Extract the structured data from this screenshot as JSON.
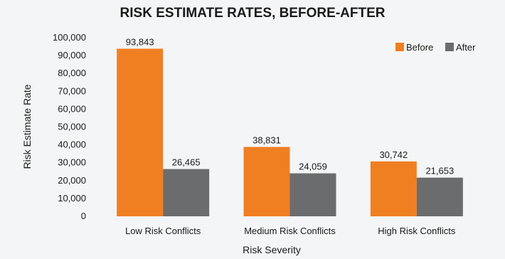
{
  "chart_data": {
    "type": "bar",
    "title": "RISK ESTIMATE RATES, BEFORE-AFTER",
    "xlabel": "Risk Severity",
    "ylabel": "Risk Estimate Rate",
    "categories": [
      "Low Risk Conflicts",
      "Medium Risk Conflicts",
      "High Risk Conflicts"
    ],
    "series": [
      {
        "name": "Before",
        "color": "#f07f22",
        "values": [
          93843,
          38831,
          30742
        ],
        "labels": [
          "93,843",
          "38,831",
          "30,742"
        ]
      },
      {
        "name": "After",
        "color": "#6b6c6e",
        "values": [
          26465,
          24059,
          21653
        ],
        "labels": [
          "26,465",
          "24,059",
          "21,653"
        ]
      }
    ],
    "ylim": [
      0,
      100000
    ],
    "yticks": [
      0,
      10000,
      20000,
      30000,
      40000,
      50000,
      60000,
      70000,
      80000,
      90000,
      100000
    ],
    "ytick_labels": [
      "0",
      "10,000",
      "20,000",
      "30,000",
      "40,000",
      "50,000",
      "60,000",
      "70,000",
      "80,000",
      "90,000",
      "100,000"
    ],
    "grid": false,
    "legend_position": "top-right"
  }
}
